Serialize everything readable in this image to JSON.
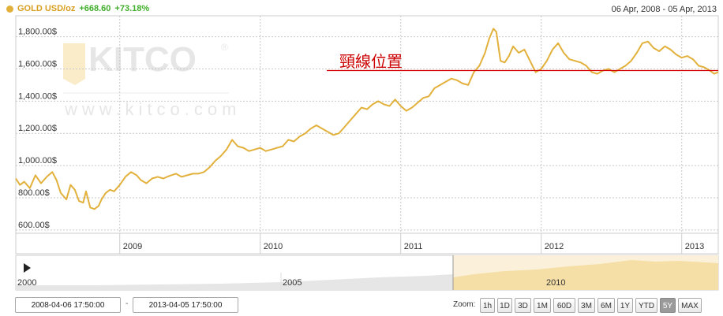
{
  "header": {
    "series_label": "GOLD USD/oz",
    "change": "+668.60",
    "change_pct": "+73.18%",
    "date_range": "06 Apr, 2008 - 05 Apr, 2013",
    "marker_color": "#e2b13c"
  },
  "watermark": {
    "brand": "KITCO",
    "registered": "®",
    "url": "www.kitco.com"
  },
  "annotation": {
    "text": "頸線位置",
    "value": 1590,
    "color": "#cc0000"
  },
  "navigator": {
    "play_icon": "play-triangle-icon",
    "labels": [
      "2000",
      "2005",
      "2010"
    ]
  },
  "range_inputs": {
    "from": "2008-04-06 17:50:00",
    "separator": "-",
    "to": "2013-04-05 17:50:00"
  },
  "zoom": {
    "label": "Zoom:",
    "buttons": [
      "1h",
      "1D",
      "3D",
      "1M",
      "60D",
      "3M",
      "6M",
      "1Y",
      "YTD",
      "5Y",
      "MAX"
    ],
    "active": "5Y"
  },
  "chart_data": {
    "type": "line",
    "title": "",
    "xlabel": "",
    "ylabel": "",
    "ylim": [
      580,
      1930
    ],
    "xlim": [
      2008.26,
      2013.26
    ],
    "y_ticks": [
      600,
      800,
      1000,
      1200,
      1400,
      1600,
      1800
    ],
    "y_tick_labels": [
      "600.00$",
      "800.00$",
      "1,000.00$",
      "1,200.00$",
      "1,400.00$",
      "1,600.00$",
      "1,800.00$"
    ],
    "x_ticks": [
      2009,
      2010,
      2011,
      2012,
      2013
    ],
    "x_tick_labels": [
      "2009",
      "2010",
      "2011",
      "2012",
      "2013"
    ],
    "grid": true,
    "line_color": "#e2b13c",
    "series": [
      {
        "x": [
          2008.26,
          2008.29,
          2008.32,
          2008.36,
          2008.4,
          2008.44,
          2008.48,
          2008.52,
          2008.55,
          2008.58,
          2008.62,
          2008.65,
          2008.68,
          2008.71,
          2008.74,
          2008.76,
          2008.79,
          2008.82,
          2008.85,
          2008.87,
          2008.9,
          2008.93,
          2008.96,
          2009.0,
          2009.04,
          2009.08,
          2009.12,
          2009.15,
          2009.19,
          2009.23,
          2009.27,
          2009.31,
          2009.35,
          2009.4,
          2009.44,
          2009.48,
          2009.52,
          2009.56,
          2009.6,
          2009.64,
          2009.68,
          2009.72,
          2009.76,
          2009.8,
          2009.84,
          2009.88,
          2009.92,
          2009.96,
          2010.0,
          2010.04,
          2010.08,
          2010.12,
          2010.16,
          2010.2,
          2010.24,
          2010.28,
          2010.32,
          2010.36,
          2010.4,
          2010.44,
          2010.48,
          2010.52,
          2010.56,
          2010.6,
          2010.64,
          2010.68,
          2010.72,
          2010.76,
          2010.8,
          2010.84,
          2010.88,
          2010.92,
          2010.96,
          2011.0,
          2011.04,
          2011.08,
          2011.12,
          2011.16,
          2011.2,
          2011.24,
          2011.28,
          2011.32,
          2011.36,
          2011.4,
          2011.44,
          2011.48,
          2011.52,
          2011.56,
          2011.6,
          2011.63,
          2011.66,
          2011.68,
          2011.71,
          2011.74,
          2011.77,
          2011.8,
          2011.84,
          2011.88,
          2011.92,
          2011.96,
          2012.0,
          2012.04,
          2012.08,
          2012.12,
          2012.16,
          2012.2,
          2012.24,
          2012.28,
          2012.32,
          2012.36,
          2012.4,
          2012.44,
          2012.48,
          2012.52,
          2012.56,
          2012.6,
          2012.64,
          2012.68,
          2012.72,
          2012.76,
          2012.8,
          2012.84,
          2012.88,
          2012.92,
          2012.96,
          2013.0,
          2013.04,
          2013.08,
          2013.12,
          2013.16,
          2013.2,
          2013.23,
          2013.26
        ],
        "y": [
          920,
          880,
          900,
          860,
          940,
          890,
          930,
          960,
          910,
          830,
          790,
          880,
          850,
          780,
          770,
          840,
          740,
          730,
          750,
          790,
          830,
          850,
          840,
          880,
          930,
          960,
          940,
          910,
          890,
          920,
          930,
          920,
          935,
          950,
          930,
          940,
          950,
          950,
          960,
          990,
          1030,
          1060,
          1100,
          1160,
          1120,
          1110,
          1090,
          1100,
          1110,
          1090,
          1100,
          1110,
          1120,
          1160,
          1150,
          1180,
          1200,
          1230,
          1250,
          1230,
          1210,
          1190,
          1200,
          1240,
          1280,
          1320,
          1360,
          1350,
          1380,
          1400,
          1380,
          1370,
          1410,
          1370,
          1340,
          1360,
          1390,
          1420,
          1430,
          1480,
          1500,
          1520,
          1540,
          1530,
          1510,
          1500,
          1580,
          1620,
          1700,
          1790,
          1850,
          1830,
          1650,
          1640,
          1680,
          1740,
          1700,
          1720,
          1650,
          1580,
          1600,
          1650,
          1720,
          1760,
          1700,
          1660,
          1650,
          1640,
          1620,
          1580,
          1570,
          1590,
          1600,
          1580,
          1600,
          1620,
          1650,
          1700,
          1760,
          1770,
          1730,
          1710,
          1740,
          1720,
          1690,
          1670,
          1680,
          1660,
          1620,
          1610,
          1590,
          1570,
          1580
        ]
      }
    ]
  }
}
